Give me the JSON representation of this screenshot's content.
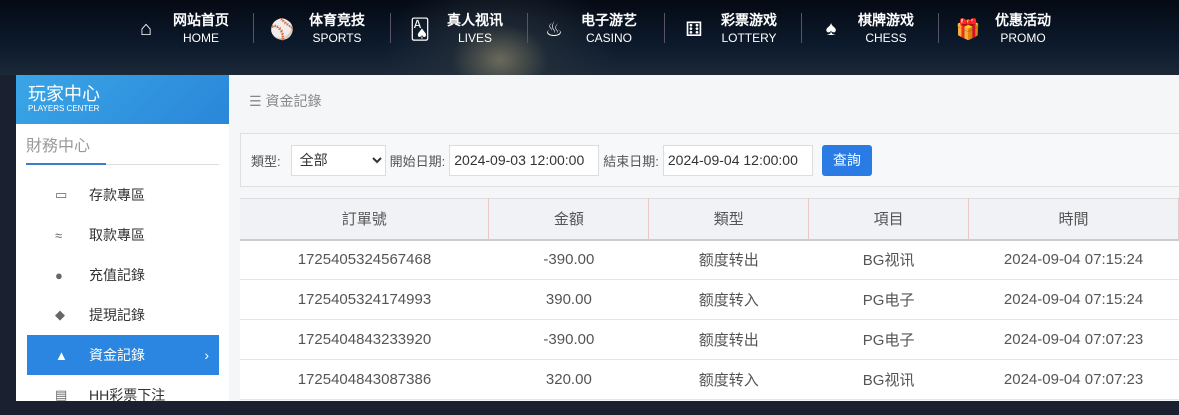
{
  "nav": [
    {
      "icon": "home-icon",
      "glyph": "⌂",
      "cn": "网站首页",
      "en": "HOME"
    },
    {
      "icon": "ball-icon",
      "glyph": "⚾",
      "cn": "体育竞技",
      "en": "SPORTS"
    },
    {
      "icon": "cards-icon",
      "glyph": "🂡",
      "cn": "真人视讯",
      "en": "LIVES"
    },
    {
      "icon": "roulette-icon",
      "glyph": "♨",
      "cn": "电子游艺",
      "en": "CASINO"
    },
    {
      "icon": "dice-icon",
      "glyph": "⚅",
      "cn": "彩票游戏",
      "en": "LOTTERY"
    },
    {
      "icon": "spade-icon",
      "glyph": "♠",
      "cn": "棋牌游戏",
      "en": "CHESS"
    },
    {
      "icon": "gift-icon",
      "glyph": "🎁",
      "cn": "优惠活动",
      "en": "PROMO"
    }
  ],
  "sidebar": {
    "title_cn": "玩家中心",
    "title_en": "PLAYERS CENTER",
    "section": "財務中心",
    "items": [
      {
        "icon": "card-icon",
        "glyph": "▭",
        "label": "存款專區"
      },
      {
        "icon": "hand-money-icon",
        "glyph": "≈",
        "label": "取款專區"
      },
      {
        "icon": "money-bag-icon",
        "glyph": "●",
        "label": "充值記錄"
      },
      {
        "icon": "wallet-icon",
        "glyph": "◆",
        "label": "提現記錄"
      },
      {
        "icon": "bank-icon",
        "glyph": "▲",
        "label": "資金記錄",
        "active": true
      },
      {
        "icon": "list-icon",
        "glyph": "▤",
        "label": "HH彩票下注"
      }
    ]
  },
  "breadcrumb": "資金記錄",
  "filter": {
    "type_label": "類型:",
    "type_value": "全部",
    "start_label": "開始日期:",
    "start_value": "2024-09-03 12:00:00",
    "end_label": "結束日期:",
    "end_value": "2024-09-04 12:00:00",
    "query": "查詢"
  },
  "table": {
    "headers": [
      "訂單號",
      "金額",
      "類型",
      "項目",
      "時間"
    ],
    "rows": [
      [
        "1725405324567468",
        "-390.00",
        "额度转出",
        "BG视讯",
        "2024-09-04 07:15:24"
      ],
      [
        "1725405324174993",
        "390.00",
        "额度转入",
        "PG电子",
        "2024-09-04 07:15:24"
      ],
      [
        "1725404843233920",
        "-390.00",
        "额度转出",
        "PG电子",
        "2024-09-04 07:07:23"
      ],
      [
        "1725404843087386",
        "320.00",
        "额度转入",
        "BG视讯",
        "2024-09-04 07:07:23"
      ]
    ]
  },
  "accent": "#2a86e0"
}
